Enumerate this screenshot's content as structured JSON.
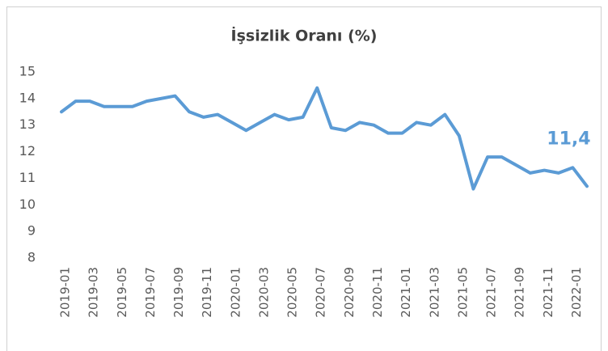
{
  "chart_data": {
    "type": "line",
    "title": "İşsizlik Oranı (%)",
    "categories": [
      "2019-01",
      null,
      "2019-03",
      null,
      "2019-05",
      null,
      "2019-07",
      null,
      "2019-09",
      null,
      "2019-11",
      null,
      "2020-01",
      null,
      "2020-03",
      null,
      "2020-05",
      null,
      "2020-07",
      null,
      "2020-09",
      null,
      "2020-11",
      null,
      "2021-01",
      null,
      "2021-03",
      null,
      "2021-05",
      null,
      "2021-07",
      null,
      "2021-09",
      null,
      "2021-11",
      null,
      "2022-01",
      null
    ],
    "series": [
      {
        "name": "İşsizlik Oranı",
        "color": "#5b9bd5",
        "values": [
          13.5,
          13.9,
          13.9,
          13.7,
          13.7,
          13.7,
          13.9,
          14.0,
          14.1,
          13.5,
          13.3,
          13.4,
          13.1,
          12.8,
          13.1,
          13.4,
          13.2,
          13.3,
          14.4,
          12.9,
          12.8,
          13.1,
          13.0,
          12.7,
          12.7,
          13.1,
          13.0,
          13.4,
          12.6,
          10.6,
          11.8,
          11.8,
          11.5,
          11.2,
          11.3,
          11.2,
          11.4,
          10.7
        ],
        "value_labels": [
          null,
          null,
          null,
          null,
          null,
          null,
          null,
          null,
          null,
          null,
          null,
          null,
          null,
          null,
          null,
          null,
          null,
          null,
          null,
          null,
          null,
          null,
          null,
          null,
          null,
          null,
          null,
          null,
          null,
          null,
          null,
          null,
          null,
          null,
          null,
          null,
          "11,4",
          null
        ]
      }
    ],
    "ylim": [
      8,
      15
    ],
    "yticks": [
      8,
      9,
      10,
      11,
      12,
      13,
      14,
      15
    ],
    "grid": false
  }
}
